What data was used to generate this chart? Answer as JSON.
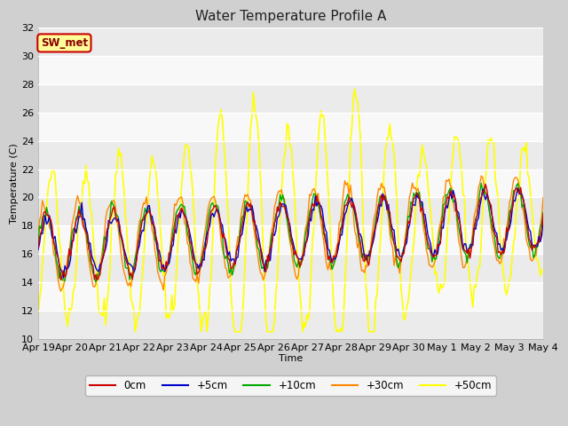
{
  "title": "Water Temperature Profile A",
  "xlabel": "Time",
  "ylabel": "Temperature (C)",
  "ylim": [
    10,
    32
  ],
  "yticks": [
    10,
    12,
    14,
    16,
    18,
    20,
    22,
    24,
    26,
    28,
    30,
    32
  ],
  "x_tick_labels": [
    "Apr 19",
    "Apr 20",
    "Apr 21",
    "Apr 22",
    "Apr 23",
    "Apr 24",
    "Apr 25",
    "Apr 26",
    "Apr 27",
    "Apr 28",
    "Apr 29",
    "Apr 30",
    "May 1",
    "May 2",
    "May 3",
    "May 4"
  ],
  "series_colors": [
    "#cc0000",
    "#0000cc",
    "#00aa00",
    "#ff8800",
    "#ffff00"
  ],
  "series_labels": [
    "0cm",
    "+5cm",
    "+10cm",
    "+30cm",
    "+50cm"
  ],
  "series_linewidths": [
    1.0,
    1.0,
    1.0,
    1.0,
    1.2
  ],
  "legend_label": "SW_met",
  "legend_bg": "#ffff99",
  "legend_border": "#cc0000",
  "title_fontsize": 11,
  "axis_fontsize": 8,
  "tick_fontsize": 8,
  "band_colors": [
    "#e8e8e8",
    "#d8d8d8"
  ],
  "fig_bg": "#d8d8d8",
  "plot_bg": "#ffffff"
}
